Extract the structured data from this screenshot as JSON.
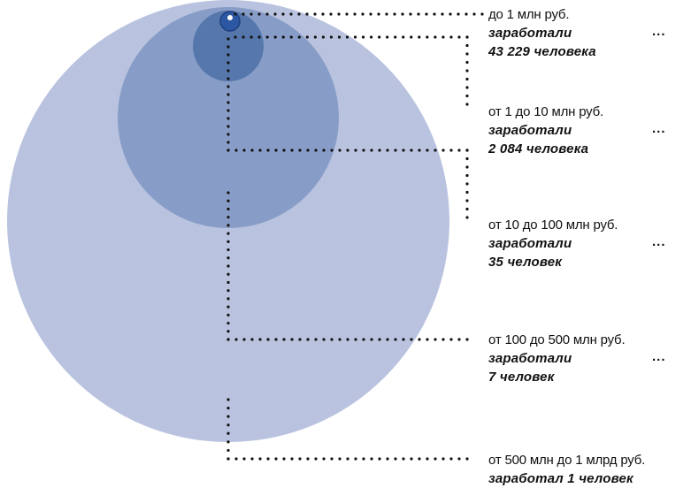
{
  "colors": {
    "circle_large": "#b9c3df",
    "circle_medium": "#879dc7",
    "circle_small": "#5577ab",
    "circle_tiny": "#2c58a3",
    "circle_tiny_ring": "#1f3f7f",
    "dots": "#111111",
    "text": "#111111"
  },
  "tiers": [
    {
      "range": "до 1 млн руб.",
      "line1": "заработали",
      "line2": "43 229 человека",
      "trailing": "..."
    },
    {
      "range": "от 1 до 10 млн руб.",
      "line1": "заработали",
      "line2": "2 084 человека",
      "trailing": "..."
    },
    {
      "range": "от 10 до 100 млн руб.",
      "line1": "заработали",
      "line2": "35 человек",
      "trailing": "..."
    },
    {
      "range": "от 100 до 500 млн руб.",
      "line1": "заработали",
      "line2": "7 человек",
      "trailing": "..."
    },
    {
      "range": "от 500 млн до 1 млрд руб.",
      "line1": "заработал 1 человек",
      "line2": "",
      "trailing": ""
    }
  ]
}
